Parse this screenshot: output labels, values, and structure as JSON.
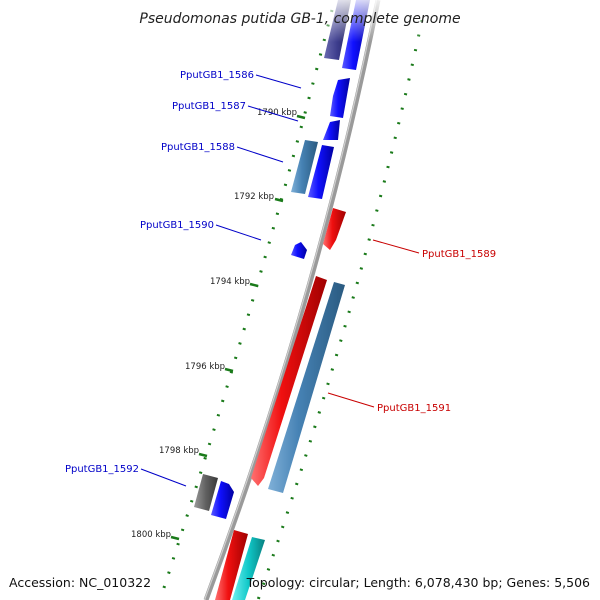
{
  "title": "Pseudomonas putida GB-1, complete genome",
  "footer": {
    "accession": "Accession: NC_010322",
    "summary": "Topology: circular; Length: 6,078,430 bp; Genes: 5,506"
  },
  "colors": {
    "label_blue": "#0000c8",
    "label_red": "#c80000",
    "tick_green": "#1a7a1a",
    "backbone": "#8a8a8a",
    "gene_blue": "#0a0af0",
    "gene_steel": "#4682b4",
    "gene_red": "#f01010",
    "gene_navy": "#3c3c8c",
    "gene_gray": "#606060",
    "gene_cyan": "#10c8c8"
  },
  "ticks": [
    {
      "label": "1790 kbp"
    },
    {
      "label": "1792 kbp"
    },
    {
      "label": "1794 kbp"
    },
    {
      "label": "1796 kbp"
    },
    {
      "label": "1798 kbp"
    },
    {
      "label": "1800 kbp"
    }
  ],
  "gene_labels": [
    {
      "text": "PputGB1_1586",
      "side": "left"
    },
    {
      "text": "PputGB1_1587",
      "side": "left"
    },
    {
      "text": "PputGB1_1588",
      "side": "left"
    },
    {
      "text": "PputGB1_1590",
      "side": "left"
    },
    {
      "text": "PputGB1_1589",
      "side": "right"
    },
    {
      "text": "PputGB1_1591",
      "side": "right"
    },
    {
      "text": "PputGB1_1592",
      "side": "left"
    }
  ]
}
